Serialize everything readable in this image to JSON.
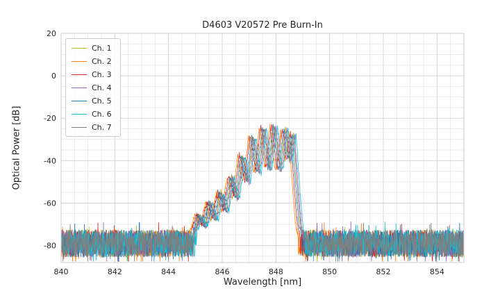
{
  "chart_data": {
    "type": "line",
    "title": "D4603 V20572 Pre Burn-In",
    "xlabel": "Wavelength [nm]",
    "ylabel": "Optical Power [dB]",
    "xlim": [
      840,
      855
    ],
    "ylim": [
      -88,
      20
    ],
    "xticks": [
      840,
      842,
      844,
      846,
      848,
      850,
      852,
      854
    ],
    "yticks": [
      20,
      0,
      -20,
      -40,
      -60,
      -80
    ],
    "grid": {
      "enabled": true,
      "minor_x_nm": 0.5,
      "major_x_nm": 2,
      "minor_y_db": 5,
      "major_y_db": 20
    },
    "legend_position": "upper-left",
    "noise_floor": {
      "mean_db": -79,
      "band_db": [
        -86,
        -72
      ]
    },
    "spectral_envelope_nm_db": [
      [
        844.9,
        -74
      ],
      [
        845.1,
        -66
      ],
      [
        845.3,
        -71
      ],
      [
        845.5,
        -60
      ],
      [
        845.7,
        -68
      ],
      [
        845.9,
        -55
      ],
      [
        846.1,
        -64
      ],
      [
        846.3,
        -48
      ],
      [
        846.5,
        -58
      ],
      [
        846.7,
        -38
      ],
      [
        846.9,
        -50
      ],
      [
        847.1,
        -29
      ],
      [
        847.3,
        -46
      ],
      [
        847.5,
        -24.5
      ],
      [
        847.7,
        -44
      ],
      [
        847.9,
        -23.5
      ],
      [
        848.1,
        -45
      ],
      [
        848.3,
        -25
      ],
      [
        848.45,
        -40
      ],
      [
        848.6,
        -27.5
      ],
      [
        848.75,
        -55
      ],
      [
        848.85,
        -70
      ],
      [
        848.95,
        -76
      ]
    ],
    "series": [
      {
        "name": "Ch. 1",
        "color": "#bcbd22",
        "offset_nm": 0.05,
        "gain_db": 0.5
      },
      {
        "name": "Ch. 2",
        "color": "#ff7f0e",
        "offset_nm": -0.12,
        "gain_db": 0.0
      },
      {
        "name": "Ch. 3",
        "color": "#d62728",
        "offset_nm": -0.06,
        "gain_db": 0.8
      },
      {
        "name": "Ch. 4",
        "color": "#9467bd",
        "offset_nm": 0.1,
        "gain_db": -0.5
      },
      {
        "name": "Ch. 5",
        "color": "#1f77b4",
        "offset_nm": 0.0,
        "gain_db": 0.3
      },
      {
        "name": "Ch. 6",
        "color": "#17becf",
        "offset_nm": 0.15,
        "gain_db": -0.2
      },
      {
        "name": "Ch. 7",
        "color": "#7f7f7f",
        "offset_nm": 0.06,
        "gain_db": 0.0
      }
    ]
  }
}
